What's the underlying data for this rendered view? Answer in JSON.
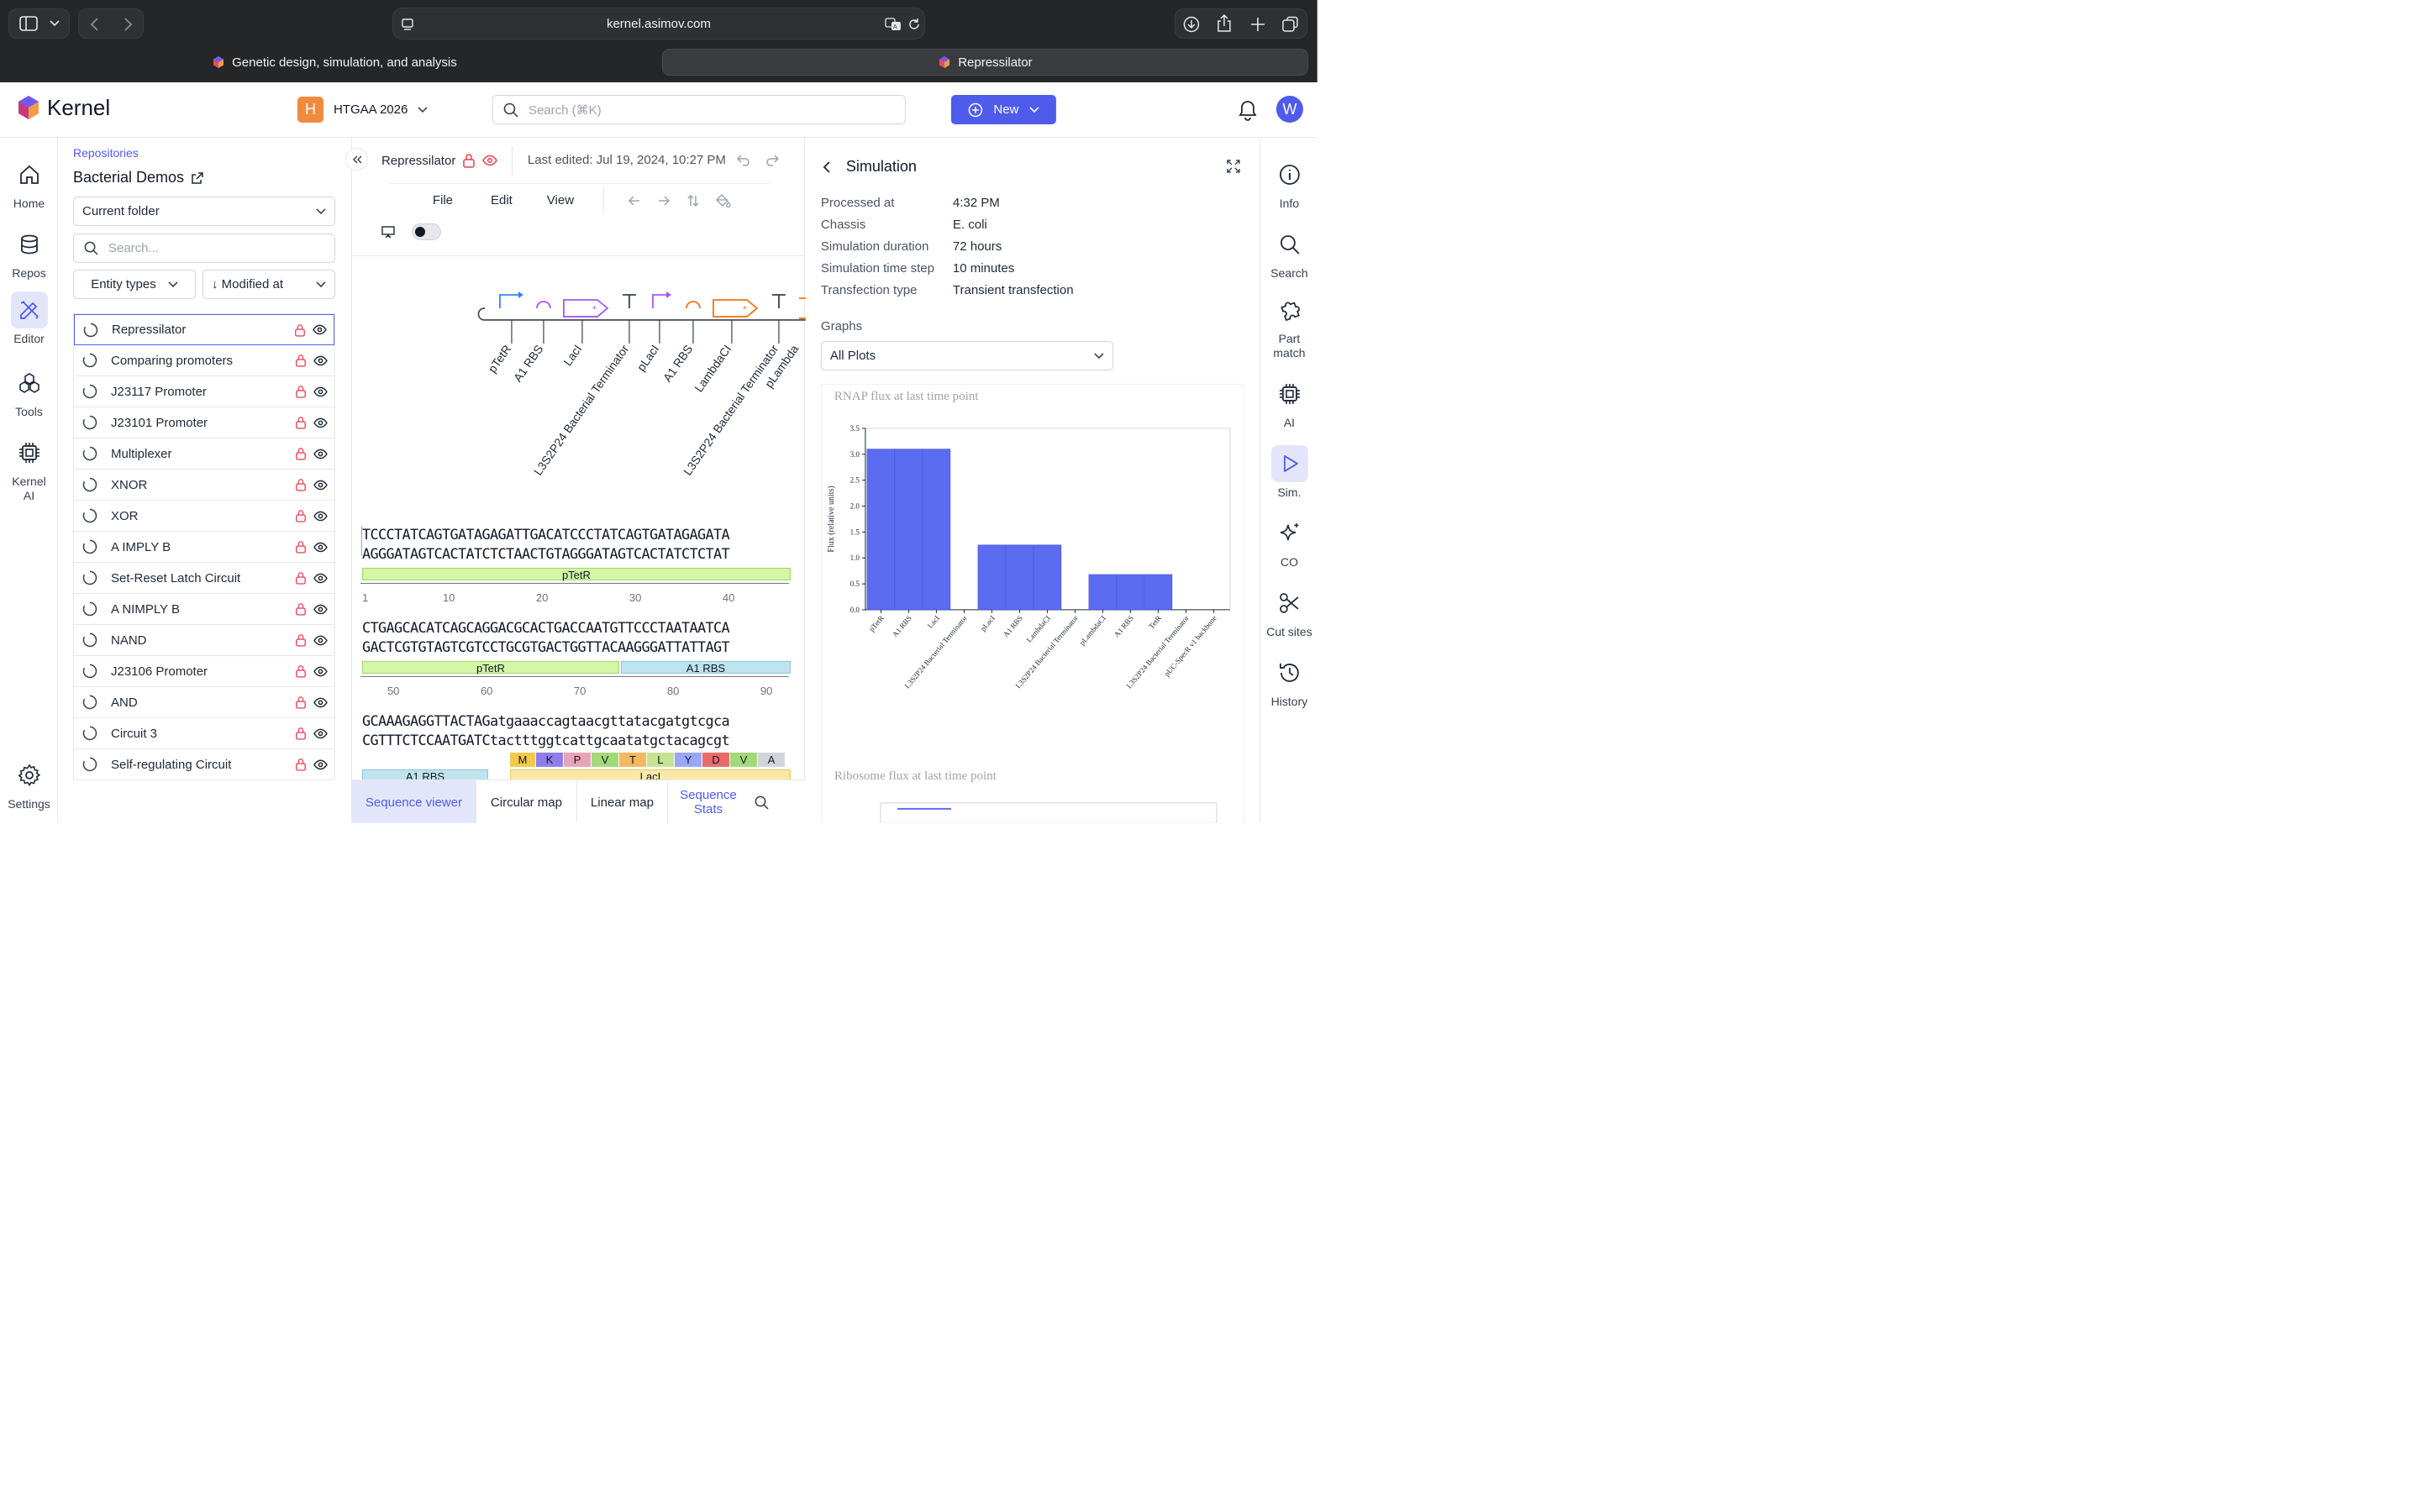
{
  "browser": {
    "url": "kernel.asimov.com",
    "tabs": [
      {
        "label": "Genetic design, simulation, and analysis",
        "active": false
      },
      {
        "label": "Repressilator",
        "active": true
      }
    ]
  },
  "header": {
    "brand": "Kernel",
    "workspace_initial": "H",
    "workspace_name": "HTGAA 2026",
    "search_placeholder": "Search (⌘K)",
    "new_label": "New",
    "user_initial": "W",
    "accent": "#4f5bea"
  },
  "left_rail": [
    {
      "label": "Home",
      "icon": "home-icon"
    },
    {
      "label": "Repos",
      "icon": "database-icon"
    },
    {
      "label": "Editor",
      "icon": "pencil-ruler-icon",
      "active": true
    },
    {
      "label": "Tools",
      "icon": "tools-icon"
    },
    {
      "label": "Kernel AI",
      "icon": "chip-icon"
    },
    {
      "label": "Settings",
      "icon": "gear-icon"
    }
  ],
  "repo": {
    "breadcrumb": "Repositories",
    "title": "Bacterial Demos",
    "folder_select": "Current folder",
    "search_placeholder": "Search...",
    "filter_entity": "Entity types",
    "sort": "↓ Modified at",
    "items": [
      "Repressilator",
      "Comparing promoters",
      "J23117 Promoter",
      "J23101 Promoter",
      "Multiplexer",
      "XNOR",
      "XOR",
      "A IMPLY B",
      "Set-Reset Latch Circuit",
      "A NIMPLY B",
      "NAND",
      "J23106 Promoter",
      "AND",
      "Circuit 3",
      "Self-regulating Circuit"
    ]
  },
  "editor": {
    "title": "Repressilator",
    "last_edited": "Last edited: Jul 19, 2024, 10:27 PM",
    "menus": [
      "File",
      "Edit",
      "View"
    ],
    "map_labels": [
      "pTetR",
      "A1 RBS",
      "LacI",
      "L3S2P24 Bacterial Terminator",
      "pLacI",
      "A1 RBS",
      "LambdaCI",
      "L3S2P24 Bacterial Terminator",
      "pLambda"
    ],
    "sequence_blocks": [
      {
        "top": "TCCCTATCAGTGATAGAGATTGACATCCCTATCAGTGATAGAGATA",
        "bottom": "AGGGATAGTCACTATCTCTAACTGTAGGGATAGTCACTATCTCTAT",
        "ticks": [
          "1",
          "10",
          "20",
          "30",
          "40"
        ],
        "features": [
          {
            "label": "pTetR"
          }
        ]
      },
      {
        "top": "CTGAGCACATCAGCAGGACGCACTGACCAATGTTCCCTAATAATCA",
        "bottom": "GACTCGTGTAGTCGTCCTGCGTGACTGGTTACAAGGGATTATTAGT",
        "ticks": [
          "50",
          "60",
          "70",
          "80",
          "90"
        ],
        "features": [
          {
            "label": "pTetR"
          },
          {
            "label": "A1 RBS"
          }
        ]
      },
      {
        "top": "GCAAAGAGGTTACTAGatgaaaccagtaacgttatacgatgtcgca",
        "bottom": "CGTTTCTCCAATGATCtactttggtcattgcaatatgctacagcgt",
        "ticks": [],
        "features": [
          {
            "label": "A1 RBS"
          },
          {
            "label": "LacI"
          }
        ],
        "aa": [
          "M",
          "K",
          "P",
          "V",
          "T",
          "L",
          "Y",
          "D",
          "V",
          "A"
        ]
      }
    ],
    "tabs": [
      "Sequence viewer",
      "Circular map",
      "Linear map",
      "Sequence Stats"
    ]
  },
  "simulation": {
    "title": "Simulation",
    "fields": [
      {
        "k": "Processed at",
        "v": "4:32 PM"
      },
      {
        "k": "Chassis",
        "v": "E. coli"
      },
      {
        "k": "Simulation duration",
        "v": "72 hours"
      },
      {
        "k": "Simulation time step",
        "v": "10 minutes"
      },
      {
        "k": "Transfection type",
        "v": "Transient transfection"
      }
    ],
    "graphs_label": "Graphs",
    "graphs_select": "All Plots",
    "plot2_title": "Ribosome flux at last time point"
  },
  "chart_data": {
    "type": "bar",
    "title": "RNAP flux at last time point",
    "ylabel": "Flux (relative units)",
    "xlabel": "",
    "ylim": [
      0,
      3.5
    ],
    "yticks": [
      "0.0",
      "0.5",
      "1.0",
      "1.5",
      "2.0",
      "2.5",
      "3.0",
      "3.5"
    ],
    "categories": [
      "pTetR",
      "A1 RBS",
      "LacI",
      "L3S2P24 Bacterial Terminator",
      "pLacI",
      "A1 RBS",
      "LambdaCI",
      "L3S2P24 Bacterial Terminator",
      "pLambdaCI",
      "A1 RBS",
      "TetR",
      "L3S2P24 Bacterial Terminator",
      "pUC-SpecR v1 backbone"
    ],
    "values": [
      3.1,
      3.1,
      3.1,
      0,
      1.25,
      1.25,
      1.25,
      0,
      0.68,
      0.68,
      0.68,
      0,
      0
    ],
    "bar_color": "#5b6cf0",
    "grid": false
  },
  "right_rail": [
    {
      "label": "Info",
      "icon": "info-icon"
    },
    {
      "label": "Search",
      "icon": "search-icon"
    },
    {
      "label": "Part match",
      "icon": "puzzle-icon"
    },
    {
      "label": "AI",
      "icon": "chip-icon"
    },
    {
      "label": "Sim.",
      "icon": "play-icon",
      "active": true
    },
    {
      "label": "CO",
      "icon": "sparkle-icon"
    },
    {
      "label": "Cut sites",
      "icon": "scissors-icon"
    },
    {
      "label": "History",
      "icon": "history-icon"
    }
  ]
}
